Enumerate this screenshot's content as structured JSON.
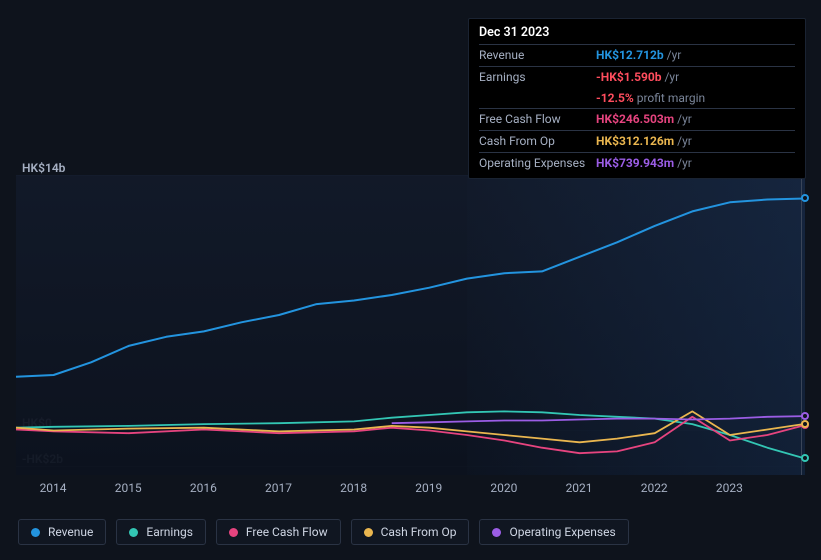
{
  "chart": {
    "type": "line",
    "background_color": "#0e131c",
    "plot_background": "#121a2a",
    "grid_color": "#2a3344",
    "text_color": "#a6b0c3",
    "x_years": [
      2014,
      2015,
      2016,
      2017,
      2018,
      2019,
      2020,
      2021,
      2022,
      2023
    ],
    "x_min": 2013.5,
    "x_max": 2024.0,
    "y_labels": [
      {
        "v": 14,
        "label": "HK$14b"
      },
      {
        "v": 0,
        "label": "HK$0"
      },
      {
        "v": -2,
        "label": "-HK$2b"
      }
    ],
    "y_min": -2.5,
    "y_max": 14,
    "highlight_x": 2023.95,
    "series": [
      {
        "name": "Revenue",
        "color": "#2394df",
        "width": 2,
        "points": [
          [
            2013.5,
            2.9
          ],
          [
            2014,
            3.0
          ],
          [
            2014.5,
            3.7
          ],
          [
            2015,
            4.6
          ],
          [
            2015.5,
            5.1
          ],
          [
            2016,
            5.4
          ],
          [
            2016.5,
            5.9
          ],
          [
            2017,
            6.3
          ],
          [
            2017.5,
            6.9
          ],
          [
            2018,
            7.1
          ],
          [
            2018.5,
            7.4
          ],
          [
            2019,
            7.8
          ],
          [
            2019.5,
            8.3
          ],
          [
            2020,
            8.6
          ],
          [
            2020.5,
            8.7
          ],
          [
            2021,
            9.5
          ],
          [
            2021.5,
            10.3
          ],
          [
            2022,
            11.2
          ],
          [
            2022.5,
            12.0
          ],
          [
            2023,
            12.5
          ],
          [
            2023.5,
            12.65
          ],
          [
            2024,
            12.71
          ]
        ]
      },
      {
        "name": "Earnings",
        "color": "#33c6b4",
        "width": 1.8,
        "points": [
          [
            2013.5,
            0.1
          ],
          [
            2014,
            0.15
          ],
          [
            2015,
            0.2
          ],
          [
            2016,
            0.3
          ],
          [
            2017,
            0.35
          ],
          [
            2018,
            0.45
          ],
          [
            2018.5,
            0.65
          ],
          [
            2019,
            0.8
          ],
          [
            2019.5,
            0.95
          ],
          [
            2020,
            1.0
          ],
          [
            2020.5,
            0.95
          ],
          [
            2021,
            0.8
          ],
          [
            2021.5,
            0.7
          ],
          [
            2022,
            0.6
          ],
          [
            2022.5,
            0.3
          ],
          [
            2023,
            -0.3
          ],
          [
            2023.5,
            -1.0
          ],
          [
            2024,
            -1.59
          ]
        ]
      },
      {
        "name": "Free Cash Flow",
        "color": "#e6447f",
        "width": 1.8,
        "points": [
          [
            2013.5,
            0.0
          ],
          [
            2014,
            -0.1
          ],
          [
            2015,
            -0.2
          ],
          [
            2016,
            0.0
          ],
          [
            2017,
            -0.2
          ],
          [
            2018,
            -0.1
          ],
          [
            2018.5,
            0.1
          ],
          [
            2019,
            -0.05
          ],
          [
            2019.5,
            -0.3
          ],
          [
            2020,
            -0.6
          ],
          [
            2020.5,
            -1.0
          ],
          [
            2021,
            -1.3
          ],
          [
            2021.5,
            -1.2
          ],
          [
            2022,
            -0.7
          ],
          [
            2022.5,
            0.7
          ],
          [
            2023,
            -0.6
          ],
          [
            2023.5,
            -0.3
          ],
          [
            2024,
            0.247
          ]
        ]
      },
      {
        "name": "Cash From Op",
        "color": "#eab64f",
        "width": 1.8,
        "points": [
          [
            2013.5,
            0.1
          ],
          [
            2014,
            -0.05
          ],
          [
            2015,
            0.05
          ],
          [
            2016,
            0.1
          ],
          [
            2017,
            -0.1
          ],
          [
            2018,
            0.0
          ],
          [
            2018.5,
            0.2
          ],
          [
            2019,
            0.1
          ],
          [
            2019.5,
            -0.1
          ],
          [
            2020,
            -0.3
          ],
          [
            2020.5,
            -0.5
          ],
          [
            2021,
            -0.7
          ],
          [
            2021.5,
            -0.5
          ],
          [
            2022,
            -0.2
          ],
          [
            2022.5,
            1.0
          ],
          [
            2023,
            -0.3
          ],
          [
            2023.5,
            0.0
          ],
          [
            2024,
            0.312
          ]
        ]
      },
      {
        "name": "Operating Expenses",
        "color": "#9b5de5",
        "width": 1.8,
        "points": [
          [
            2018.5,
            0.35
          ],
          [
            2019,
            0.4
          ],
          [
            2019.5,
            0.45
          ],
          [
            2020,
            0.5
          ],
          [
            2020.5,
            0.5
          ],
          [
            2021,
            0.55
          ],
          [
            2021.5,
            0.6
          ],
          [
            2022,
            0.6
          ],
          [
            2022.5,
            0.55
          ],
          [
            2023,
            0.6
          ],
          [
            2023.5,
            0.7
          ],
          [
            2024,
            0.74
          ]
        ]
      }
    ]
  },
  "tooltip": {
    "date": "Dec 31 2023",
    "rows": [
      {
        "label": "Revenue",
        "value": "HK$12.712b",
        "suffix": "/yr",
        "color": "#2394df"
      },
      {
        "label": "Earnings",
        "value": "-HK$1.590b",
        "suffix": "/yr",
        "color": "#ff4d5e"
      },
      {
        "label": "",
        "value": "-12.5%",
        "suffix": "profit margin",
        "color": "#ff4d5e"
      },
      {
        "label": "Free Cash Flow",
        "value": "HK$246.503m",
        "suffix": "/yr",
        "color": "#e6447f"
      },
      {
        "label": "Cash From Op",
        "value": "HK$312.126m",
        "suffix": "/yr",
        "color": "#eab64f"
      },
      {
        "label": "Operating Expenses",
        "value": "HK$739.943m",
        "suffix": "/yr",
        "color": "#9b5de5"
      }
    ]
  },
  "legend": [
    {
      "label": "Revenue",
      "color": "#2394df"
    },
    {
      "label": "Earnings",
      "color": "#33c6b4"
    },
    {
      "label": "Free Cash Flow",
      "color": "#e6447f"
    },
    {
      "label": "Cash From Op",
      "color": "#eab64f"
    },
    {
      "label": "Operating Expenses",
      "color": "#9b5de5"
    }
  ]
}
